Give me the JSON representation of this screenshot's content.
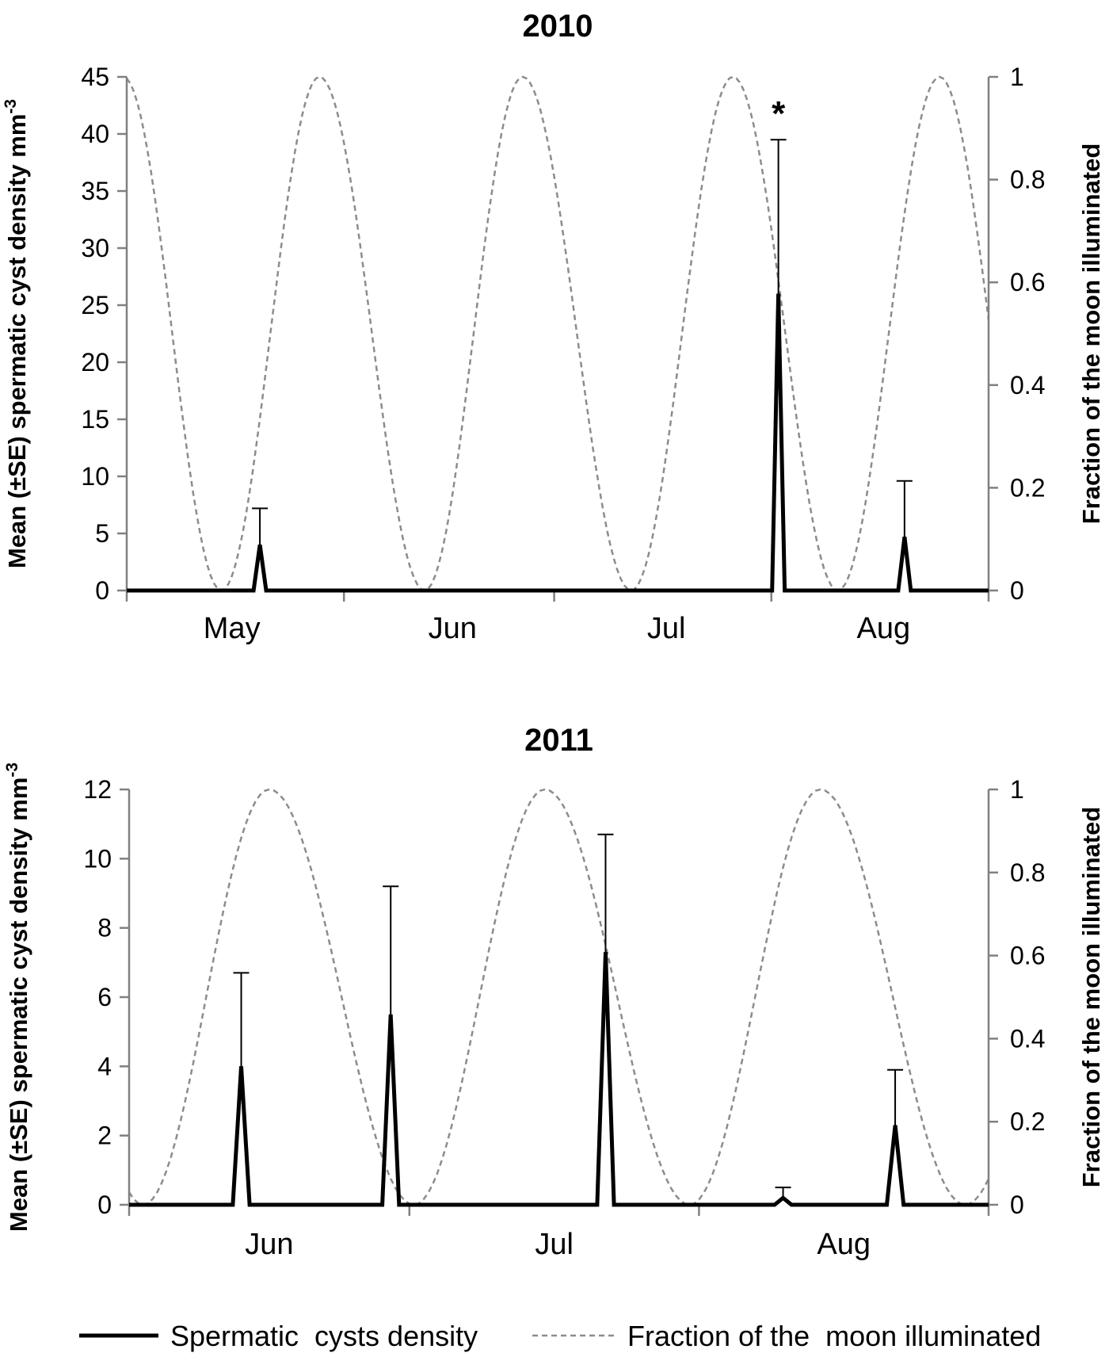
{
  "chart_data": [
    {
      "type": "line",
      "title": "2010",
      "ylabel": "Mean (±SE) spermatic cyst density mm",
      "ylabel_superscript": "-3",
      "y2label": "Fraction of the moon illuminated",
      "ylim": [
        0,
        45
      ],
      "yticks": [
        0,
        5,
        10,
        15,
        20,
        25,
        30,
        35,
        40,
        45
      ],
      "y2lim": [
        0,
        1
      ],
      "y2ticks": [
        "0",
        "0.2",
        "0.4",
        "0.6",
        "0.8",
        "1"
      ],
      "xlim": [
        0,
        123
      ],
      "month_labels": [
        {
          "label": "May",
          "x": 15
        },
        {
          "label": "Jun",
          "x": 46.5
        },
        {
          "label": "Jul",
          "x": 77
        },
        {
          "label": "Aug",
          "x": 108
        }
      ],
      "month_boundaries": [
        0,
        31,
        61,
        92,
        123
      ],
      "moon_phase": {
        "new_moon_days": [
          13.5,
          42.5,
          72,
          101.5
        ],
        "full_moon_days": [
          27.5,
          56.5,
          86.5,
          116
        ],
        "start_fraction": 0.92
      },
      "series": [
        {
          "name": "Spermatic  cysts density",
          "points": [
            {
              "day": 19,
              "value": 4.0,
              "se_upper": 7.2
            },
            {
              "day": 93,
              "value": 26.0,
              "se_upper": 39.5,
              "annotation": "*"
            },
            {
              "day": 111,
              "value": 4.7,
              "se_upper": 9.6
            }
          ]
        }
      ]
    },
    {
      "type": "line",
      "title": "2011",
      "ylabel": "Mean (±SE) spermatic cyst density mm",
      "ylabel_superscript": "-3",
      "y2label": "Fraction of the moon illuminated",
      "ylim": [
        0,
        12
      ],
      "yticks": [
        0,
        2,
        4,
        6,
        8,
        10,
        12
      ],
      "y2lim": [
        0,
        1
      ],
      "y2ticks": [
        "0",
        "0.2",
        "0.4",
        "0.6",
        "0.8",
        "1"
      ],
      "xlim": [
        0,
        92
      ],
      "month_labels": [
        {
          "label": "Jun",
          "x": 15
        },
        {
          "label": "Jul",
          "x": 45.5
        },
        {
          "label": "Aug",
          "x": 76.5
        }
      ],
      "month_boundaries": [
        0,
        30,
        61,
        92
      ],
      "moon_phase": {
        "new_moon_days": [
          1.5,
          30.5,
          60,
          89.5
        ],
        "full_moon_days": [
          15,
          44.5,
          74
        ]
      },
      "series": [
        {
          "name": "Spermatic  cysts density",
          "points": [
            {
              "day": 12,
              "value": 4.0,
              "se_upper": 6.7
            },
            {
              "day": 28,
              "value": 5.5,
              "se_upper": 9.2
            },
            {
              "day": 51,
              "value": 7.3,
              "se_upper": 10.7
            },
            {
              "day": 70,
              "value": 0.2,
              "se_upper": 0.5
            },
            {
              "day": 82,
              "value": 2.3,
              "se_upper": 3.9
            }
          ]
        }
      ]
    }
  ],
  "legend": {
    "items": [
      {
        "label": "Spermatic  cysts density",
        "style": "solid"
      },
      {
        "label": "Fraction of the  moon illuminated",
        "style": "dashed"
      }
    ]
  },
  "colors": {
    "density": "#000000",
    "moon": "#8c8c8c",
    "axis": "#808080"
  }
}
